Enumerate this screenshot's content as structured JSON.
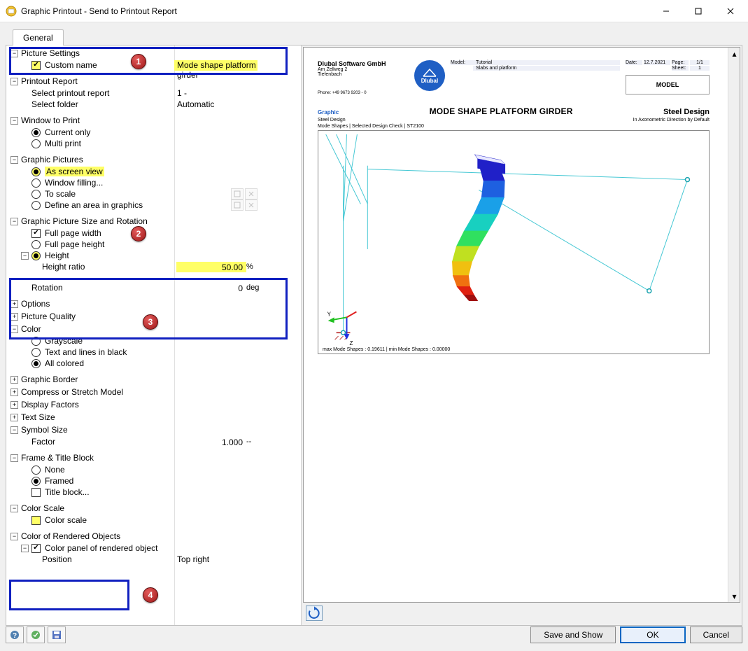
{
  "window": {
    "title": "Graphic Printout - Send to Printout Report"
  },
  "tabs": {
    "general": "General"
  },
  "badges": [
    "1",
    "2",
    "3",
    "4"
  ],
  "sections": {
    "pictureSettings": {
      "title": "Picture Settings",
      "customName": "Custom name",
      "customNameValue": "Mode shape platform girder"
    },
    "printoutReport": {
      "title": "Printout Report",
      "selectReport": "Select printout report",
      "selectReportValue": "1 -",
      "selectFolder": "Select folder",
      "selectFolderValue": "Automatic"
    },
    "windowToPrint": {
      "title": "Window to Print",
      "currentOnly": "Current only",
      "multiPrint": "Multi print"
    },
    "graphicPictures": {
      "title": "Graphic Pictures",
      "asScreenView": "As screen view",
      "windowFilling": "Window filling...",
      "toScale": "To scale",
      "defineArea": "Define an area in graphics"
    },
    "sizeRotation": {
      "title": "Graphic Picture Size and Rotation",
      "fullPageWidth": "Full page width",
      "fullPageHeight": "Full page height",
      "height": "Height",
      "heightRatio": "Height ratio",
      "heightRatioValue": "50.00",
      "heightRatioUnit": "%",
      "rotation": "Rotation",
      "rotationValue": "0",
      "rotationUnit": "deg"
    },
    "options": "Options",
    "pictureQuality": "Picture Quality",
    "color": {
      "title": "Color",
      "grayscale": "Grayscale",
      "textLines": "Text and lines in black",
      "allColored": "All colored"
    },
    "graphicBorder": "Graphic Border",
    "compress": "Compress or Stretch Model",
    "displayFactors": "Display Factors",
    "textSize": "Text Size",
    "symbolSize": {
      "title": "Symbol Size",
      "factor": "Factor",
      "factorValue": "1.000",
      "factorUnit": "--"
    },
    "frameTitle": {
      "title": "Frame & Title Block",
      "none": "None",
      "framed": "Framed",
      "titleBlock": "Title block..."
    },
    "colorScale": {
      "title": "Color Scale",
      "colorScale": "Color scale"
    },
    "renderedObjects": {
      "title": "Color of Rendered Objects",
      "colorPanel": "Color panel of rendered object",
      "position": "Position",
      "positionValue": "Top right"
    }
  },
  "preview": {
    "company": "Dlubal Software GmbH",
    "addr1": "Am Zellweg 2",
    "addr2": "Tiefenbach",
    "phone": "Phone: +49 9673 9203 - 0",
    "logoText": "Dlubal",
    "meta": {
      "modelLbl": "Model:",
      "model": "Tutorial",
      "sub": "Slabs and platform",
      "dateLbl": "Date:",
      "date": "12.7.2021",
      "pageLbl": "Page:",
      "page": "1/1",
      "sheetLbl": "Sheet:",
      "sheet": "1",
      "modelBox": "MODEL"
    },
    "graphicLbl": "Graphic",
    "graphicTitle": "MODE SHAPE PLATFORM GIRDER",
    "graphicRight": "Steel Design",
    "sub1": "Steel Design",
    "sub2": "Mode Shapes | Selected Design Check | ST2100",
    "subRight": "In Axonometric Direction by Default",
    "footer": "max Mode Shapes : 0.19611 | min Mode Shapes : 0.00000",
    "axes": {
      "y": "Y",
      "z": "Z"
    },
    "shape": {
      "wire_color": "#46c8d4",
      "node_color": "#1aa3af",
      "fill_colors": [
        "#2020c8",
        "#1e60e0",
        "#1aa0e8",
        "#18d0c0",
        "#30e060",
        "#c0e020",
        "#f0c010",
        "#f07010",
        "#e02010",
        "#a01010"
      ],
      "origin_colors": {
        "x": "#e02020",
        "y": "#20c020",
        "z": "#2030e0"
      }
    }
  },
  "buttons": {
    "saveAndShow": "Save and Show",
    "ok": "OK",
    "cancel": "Cancel"
  }
}
